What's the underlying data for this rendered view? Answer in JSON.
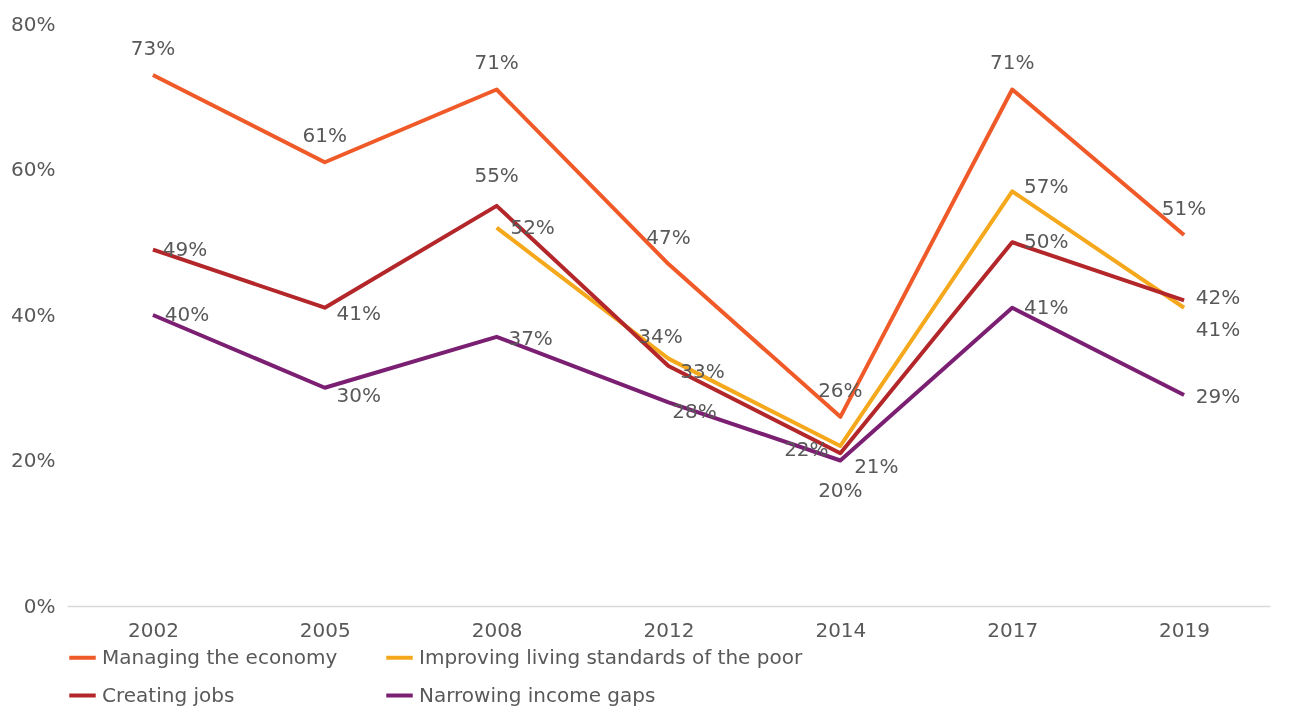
{
  "chart_data": {
    "type": "line",
    "categories": [
      "2002",
      "2005",
      "2008",
      "2012",
      "2014",
      "2017",
      "2019"
    ],
    "series": [
      {
        "name": "Managing the economy",
        "color": "#f05a28",
        "values": [
          73,
          61,
          71,
          47,
          26,
          71,
          51
        ],
        "value_labels": [
          "73%",
          "61%",
          "71%",
          "47%",
          "26%",
          "71%",
          "51%"
        ]
      },
      {
        "name": "Improving living standards of the poor",
        "color": "#f5a81c",
        "values": [
          null,
          null,
          52,
          34,
          22,
          57,
          41
        ],
        "value_labels": [
          null,
          null,
          "52%",
          "34%",
          "22%",
          "57%",
          "41%"
        ]
      },
      {
        "name": "Creating jobs",
        "color": "#b3262a",
        "values": [
          49,
          41,
          55,
          33,
          21,
          50,
          42
        ],
        "value_labels": [
          "49%",
          "41%",
          "55%",
          "33%",
          "21%",
          "50%",
          "42%"
        ]
      },
      {
        "name": "Narrowing income gaps",
        "color": "#7b1f72",
        "values": [
          40,
          30,
          37,
          28,
          20,
          41,
          29
        ],
        "value_labels": [
          "40%",
          "30%",
          "37%",
          "28%",
          "20%",
          "41%",
          "29%"
        ]
      }
    ],
    "ylim": [
      0,
      80
    ],
    "yticks": [
      {
        "value": 0,
        "label": "0%"
      },
      {
        "value": 20,
        "label": "20%"
      },
      {
        "value": 40,
        "label": "40%"
      },
      {
        "value": 60,
        "label": "60%"
      },
      {
        "value": 80,
        "label": "80%"
      }
    ],
    "grid": false,
    "legend": "bottom",
    "marker": "none",
    "line_style": "solid"
  }
}
